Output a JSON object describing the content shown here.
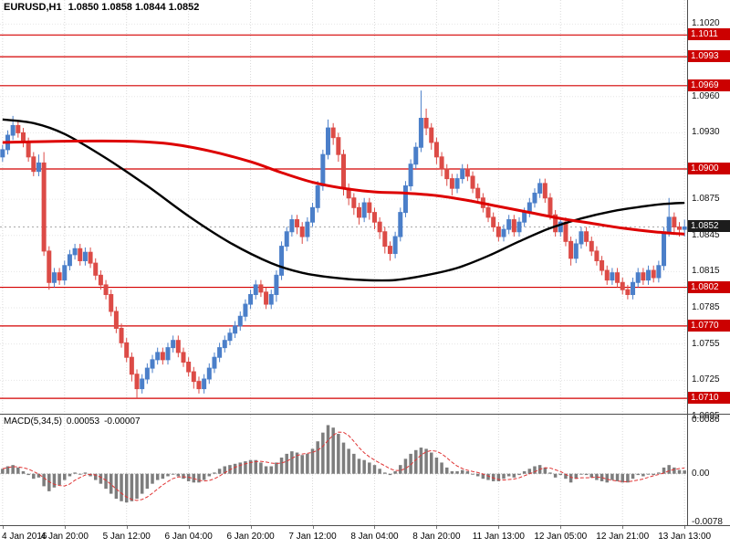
{
  "title": {
    "symbol_period": "EURUSD,H1",
    "ohlc": "1.0850 1.0858 1.0844 1.0852"
  },
  "colors": {
    "up": "#4b7fc9",
    "down": "#dc4b46",
    "ma_red": "#dd0000",
    "ma_black": "#000000",
    "level": "#d40000",
    "badge_level_bg": "#cc0000",
    "badge_current_bg": "#1c1c1c",
    "macd_bar": "#7d7d7d",
    "macd_signal": "#e03535",
    "grid": "#d9d9d9",
    "grid_h": "#e6e6e6",
    "current_line": "#aaaaaa"
  },
  "chart_data": [
    {
      "type": "candlestick",
      "symbol": "EURUSD",
      "timeframe": "H1",
      "legend_position": "top-left",
      "grid": true,
      "ylim": [
        1.0698,
        1.104
      ],
      "y_ticks": [
        1.102,
        1.096,
        1.093,
        1.0875,
        1.0845,
        1.0815,
        1.0785,
        1.0755,
        1.0725,
        1.0695
      ],
      "levels": [
        1.1011,
        1.0993,
        1.0969,
        1.09,
        1.0802,
        1.077,
        1.071
      ],
      "current_price": 1.0852,
      "x_labels": [
        "4 Jan 2016",
        "4 Jan 20:00",
        "5 Jan 12:00",
        "6 Jan 04:00",
        "6 Jan 20:00",
        "7 Jan 12:00",
        "8 Jan 04:00",
        "8 Jan 20:00",
        "11 Jan 13:00",
        "12 Jan 05:00",
        "12 Jan 21:00",
        "13 Jan 13:00"
      ],
      "candles": [
        [
          1.091,
          1.092,
          1.0906,
          1.0916
        ],
        [
          1.0916,
          1.0932,
          1.0912,
          1.0928
        ],
        [
          1.0928,
          1.0944,
          1.0924,
          1.0936
        ],
        [
          1.0936,
          1.094,
          1.0926,
          1.093
        ],
        [
          1.093,
          1.0934,
          1.0918,
          1.0922
        ],
        [
          1.0922,
          1.0926,
          1.0906,
          1.091
        ],
        [
          1.091,
          1.0914,
          1.0894,
          1.0898
        ],
        [
          1.0898,
          1.0912,
          1.0894,
          1.0905
        ],
        [
          1.0905,
          1.0914,
          1.0828,
          1.0832
        ],
        [
          1.0832,
          1.0836,
          1.08,
          1.0806
        ],
        [
          1.0806,
          1.0818,
          1.0802,
          1.0814
        ],
        [
          1.0814,
          1.0818,
          1.0804,
          1.0808
        ],
        [
          1.0808,
          1.0824,
          1.0804,
          1.082
        ],
        [
          1.082,
          1.0833,
          1.0816,
          1.0829
        ],
        [
          1.0829,
          1.0838,
          1.0825,
          1.0834
        ],
        [
          1.0834,
          1.0838,
          1.082,
          1.0824
        ],
        [
          1.0824,
          1.0835,
          1.082,
          1.0831
        ],
        [
          1.0831,
          1.0835,
          1.0818,
          1.0822
        ],
        [
          1.0822,
          1.0826,
          1.0808,
          1.0812
        ],
        [
          1.0812,
          1.0816,
          1.08,
          1.0804
        ],
        [
          1.0804,
          1.0808,
          1.0792,
          1.0796
        ],
        [
          1.0796,
          1.08,
          1.0778,
          1.0782
        ],
        [
          1.0782,
          1.0786,
          1.0764,
          1.0768
        ],
        [
          1.0768,
          1.0772,
          1.0752,
          1.0756
        ],
        [
          1.0756,
          1.076,
          1.074,
          1.0744
        ],
        [
          1.0744,
          1.0748,
          1.0724,
          1.073
        ],
        [
          1.073,
          1.0734,
          1.071,
          1.0718
        ],
        [
          1.0718,
          1.073,
          1.0714,
          1.0726
        ],
        [
          1.0726,
          1.0739,
          1.0722,
          1.0735
        ],
        [
          1.0735,
          1.0746,
          1.0731,
          1.0742
        ],
        [
          1.0742,
          1.0752,
          1.0738,
          1.0748
        ],
        [
          1.0748,
          1.0752,
          1.0738,
          1.0742
        ],
        [
          1.0742,
          1.0756,
          1.0738,
          1.0752
        ],
        [
          1.0752,
          1.0762,
          1.0748,
          1.0758
        ],
        [
          1.0758,
          1.0762,
          1.0744,
          1.0748
        ],
        [
          1.0748,
          1.0752,
          1.0736,
          1.074
        ],
        [
          1.074,
          1.0744,
          1.0728,
          1.0732
        ],
        [
          1.0732,
          1.0736,
          1.0718,
          1.0724
        ],
        [
          1.0724,
          1.0728,
          1.0714,
          1.0718
        ],
        [
          1.0718,
          1.073,
          1.0714,
          1.0726
        ],
        [
          1.0726,
          1.0739,
          1.0722,
          1.0735
        ],
        [
          1.0735,
          1.0748,
          1.0731,
          1.0744
        ],
        [
          1.0744,
          1.0756,
          1.074,
          1.0752
        ],
        [
          1.0752,
          1.0762,
          1.0748,
          1.0758
        ],
        [
          1.0758,
          1.0768,
          1.0754,
          1.0764
        ],
        [
          1.0764,
          1.0774,
          1.076,
          1.077
        ],
        [
          1.077,
          1.0782,
          1.0766,
          1.0778
        ],
        [
          1.0778,
          1.0792,
          1.0774,
          1.0788
        ],
        [
          1.0788,
          1.08,
          1.0784,
          1.0796
        ],
        [
          1.0796,
          1.0808,
          1.0792,
          1.0804
        ],
        [
          1.0804,
          1.0808,
          1.0794,
          1.0798
        ],
        [
          1.0798,
          1.0802,
          1.0784,
          1.0788
        ],
        [
          1.0788,
          1.08,
          1.0784,
          1.0796
        ],
        [
          1.0796,
          1.0816,
          1.079,
          1.0812
        ],
        [
          1.0812,
          1.084,
          1.0808,
          1.0836
        ],
        [
          1.0836,
          1.0852,
          1.0832,
          1.0848
        ],
        [
          1.0848,
          1.0862,
          1.0844,
          1.0858
        ],
        [
          1.0858,
          1.0862,
          1.0846,
          1.0852
        ],
        [
          1.0852,
          1.0856,
          1.0838,
          1.0844
        ],
        [
          1.0844,
          1.086,
          1.084,
          1.0856
        ],
        [
          1.0856,
          1.0872,
          1.0852,
          1.0868
        ],
        [
          1.0868,
          1.089,
          1.0864,
          1.0886
        ],
        [
          1.0886,
          1.0916,
          1.0882,
          1.0912
        ],
        [
          1.0912,
          1.0941,
          1.0908,
          1.0934
        ],
        [
          1.0934,
          1.0938,
          1.092,
          1.0926
        ],
        [
          1.0926,
          1.093,
          1.0906,
          1.0912
        ],
        [
          1.0912,
          1.0916,
          1.0878,
          1.0884
        ],
        [
          1.0884,
          1.0888,
          1.087,
          1.0876
        ],
        [
          1.0876,
          1.088,
          1.0862,
          1.0868
        ],
        [
          1.0868,
          1.0872,
          1.0854,
          1.086
        ],
        [
          1.086,
          1.0876,
          1.0856,
          1.0872
        ],
        [
          1.0872,
          1.0876,
          1.0858,
          1.0864
        ],
        [
          1.0864,
          1.0868,
          1.085,
          1.0856
        ],
        [
          1.0856,
          1.086,
          1.0842,
          1.0848
        ],
        [
          1.0848,
          1.0852,
          1.083,
          1.0836
        ],
        [
          1.0836,
          1.084,
          1.0824,
          1.083
        ],
        [
          1.083,
          1.0848,
          1.0826,
          1.0844
        ],
        [
          1.0844,
          1.0868,
          1.084,
          1.0864
        ],
        [
          1.0864,
          1.089,
          1.086,
          1.0886
        ],
        [
          1.0886,
          1.0908,
          1.0882,
          1.0904
        ],
        [
          1.0904,
          1.0922,
          1.09,
          1.0918
        ],
        [
          1.0918,
          1.0965,
          1.0914,
          1.0942
        ],
        [
          1.0942,
          1.095,
          1.0928,
          1.0934
        ],
        [
          1.0934,
          1.0938,
          1.0916,
          1.0922
        ],
        [
          1.0922,
          1.0926,
          1.0904,
          1.091
        ],
        [
          1.091,
          1.0914,
          1.0894,
          1.09
        ],
        [
          1.09,
          1.0904,
          1.0886,
          1.0892
        ],
        [
          1.0892,
          1.0896,
          1.0878,
          1.0884
        ],
        [
          1.0884,
          1.0896,
          1.088,
          1.0892
        ],
        [
          1.0892,
          1.0904,
          1.0888,
          1.09
        ],
        [
          1.09,
          1.0904,
          1.089,
          1.0894
        ],
        [
          1.0894,
          1.0898,
          1.088,
          1.0884
        ],
        [
          1.0884,
          1.0888,
          1.0872,
          1.0876
        ],
        [
          1.0876,
          1.088,
          1.0864,
          1.0868
        ],
        [
          1.0868,
          1.0872,
          1.0856,
          1.086
        ],
        [
          1.086,
          1.0864,
          1.0848,
          1.0852
        ],
        [
          1.0852,
          1.0856,
          1.084,
          1.0844
        ],
        [
          1.0844,
          1.0854,
          1.084,
          1.085
        ],
        [
          1.085,
          1.0862,
          1.0846,
          1.0858
        ],
        [
          1.0858,
          1.0862,
          1.0844,
          1.0848
        ],
        [
          1.0848,
          1.086,
          1.0844,
          1.0856
        ],
        [
          1.0856,
          1.0868,
          1.0852,
          1.0864
        ],
        [
          1.0864,
          1.0876,
          1.086,
          1.0872
        ],
        [
          1.0872,
          1.0884,
          1.0868,
          1.088
        ],
        [
          1.088,
          1.0892,
          1.0876,
          1.0888
        ],
        [
          1.0888,
          1.0892,
          1.0872,
          1.0876
        ],
        [
          1.0876,
          1.088,
          1.0858,
          1.0862
        ],
        [
          1.0862,
          1.0866,
          1.0844,
          1.0848
        ],
        [
          1.0848,
          1.086,
          1.0844,
          1.0856
        ],
        [
          1.0856,
          1.086,
          1.0836,
          1.084
        ],
        [
          1.084,
          1.0844,
          1.082,
          1.0826
        ],
        [
          1.0826,
          1.0842,
          1.0822,
          1.0838
        ],
        [
          1.0838,
          1.0852,
          1.0834,
          1.0848
        ],
        [
          1.0848,
          1.0852,
          1.0836,
          1.084
        ],
        [
          1.084,
          1.0844,
          1.0828,
          1.0832
        ],
        [
          1.0832,
          1.0836,
          1.082,
          1.0824
        ],
        [
          1.0824,
          1.0828,
          1.0812,
          1.0816
        ],
        [
          1.0816,
          1.082,
          1.0804,
          1.0808
        ],
        [
          1.0808,
          1.0818,
          1.0804,
          1.0814
        ],
        [
          1.0814,
          1.0818,
          1.0802,
          1.0806
        ],
        [
          1.0806,
          1.081,
          1.0796,
          1.08
        ],
        [
          1.08,
          1.0804,
          1.0792,
          1.0796
        ],
        [
          1.0796,
          1.081,
          1.0792,
          1.0806
        ],
        [
          1.0806,
          1.0818,
          1.0802,
          1.0814
        ],
        [
          1.0814,
          1.0818,
          1.0804,
          1.0808
        ],
        [
          1.0808,
          1.082,
          1.0804,
          1.0816
        ],
        [
          1.0816,
          1.082,
          1.0806,
          1.081
        ],
        [
          1.081,
          1.0824,
          1.0806,
          1.082
        ],
        [
          1.082,
          1.0852,
          1.0816,
          1.0848
        ],
        [
          1.0848,
          1.0876,
          1.0844,
          1.086
        ],
        [
          1.086,
          1.0864,
          1.0846,
          1.0852
        ],
        [
          1.0852,
          1.0856,
          1.0844,
          1.085
        ],
        [
          1.085,
          1.0858,
          1.0844,
          1.0852
        ]
      ],
      "ma_red": [
        [
          0,
          1.0922
        ],
        [
          12,
          1.0923
        ],
        [
          24,
          1.0923
        ],
        [
          32,
          1.0921
        ],
        [
          40,
          1.0915
        ],
        [
          48,
          1.0906
        ],
        [
          54,
          1.0897
        ],
        [
          60,
          1.0889
        ],
        [
          66,
          1.0884
        ],
        [
          72,
          1.0881
        ],
        [
          78,
          1.088
        ],
        [
          84,
          1.0878
        ],
        [
          90,
          1.0874
        ],
        [
          96,
          1.0869
        ],
        [
          102,
          1.0864
        ],
        [
          108,
          1.0859
        ],
        [
          114,
          1.0855
        ],
        [
          120,
          1.0851
        ],
        [
          126,
          1.0848
        ],
        [
          132,
          1.0846
        ]
      ],
      "ma_black": [
        [
          0,
          1.0941
        ],
        [
          6,
          1.0938
        ],
        [
          12,
          1.0929
        ],
        [
          20,
          1.0909
        ],
        [
          28,
          1.0886
        ],
        [
          36,
          1.0861
        ],
        [
          44,
          1.0839
        ],
        [
          52,
          1.0822
        ],
        [
          58,
          1.0814
        ],
        [
          64,
          1.081
        ],
        [
          70,
          1.0808
        ],
        [
          76,
          1.0808
        ],
        [
          82,
          1.0812
        ],
        [
          88,
          1.0818
        ],
        [
          94,
          1.0828
        ],
        [
          100,
          1.084
        ],
        [
          106,
          1.0851
        ],
        [
          112,
          1.0859
        ],
        [
          118,
          1.0865
        ],
        [
          124,
          1.0869
        ],
        [
          128,
          1.0871
        ],
        [
          132,
          1.0872
        ]
      ]
    },
    {
      "type": "bar",
      "label": "MACD(5,34,5)",
      "value": "0.00053",
      "signal_value": "-0.00007",
      "ylim": [
        -0.0078,
        0.0086
      ],
      "y_ticks": [
        {
          "v": 0.0086,
          "label": "0.0086"
        },
        {
          "v": 0,
          "label": "0.00"
        },
        {
          "v": -0.0078,
          "label": "-0.0078"
        }
      ],
      "values": [
        0.0008,
        0.0012,
        0.0014,
        0.001,
        0.0004,
        -0.0002,
        -0.0008,
        -0.0006,
        -0.002,
        -0.0028,
        -0.0022,
        -0.0018,
        -0.001,
        -0.0004,
        0.0002,
        0.0,
        0.0002,
        -0.0004,
        -0.001,
        -0.0016,
        -0.0024,
        -0.0032,
        -0.004,
        -0.0044,
        -0.0046,
        -0.0044,
        -0.004,
        -0.0032,
        -0.0024,
        -0.0016,
        -0.001,
        -0.0008,
        -0.0004,
        0.0,
        -0.0004,
        -0.0008,
        -0.0012,
        -0.0014,
        -0.0014,
        -0.001,
        -0.0004,
        0.0002,
        0.0008,
        0.0012,
        0.0014,
        0.0016,
        0.0018,
        0.002,
        0.0022,
        0.0022,
        0.0018,
        0.0012,
        0.0012,
        0.0018,
        0.0026,
        0.0032,
        0.0036,
        0.0034,
        0.003,
        0.0032,
        0.004,
        0.0052,
        0.0066,
        0.0078,
        0.0074,
        0.0064,
        0.005,
        0.004,
        0.0032,
        0.0024,
        0.0022,
        0.0018,
        0.0014,
        0.0008,
        0.0002,
        -0.0002,
        0.0004,
        0.0014,
        0.0024,
        0.0032,
        0.0038,
        0.0042,
        0.004,
        0.0034,
        0.0026,
        0.0018,
        0.001,
        0.0004,
        0.0004,
        0.0006,
        0.0004,
        0.0,
        -0.0004,
        -0.0008,
        -0.001,
        -0.0012,
        -0.0012,
        -0.0008,
        -0.0004,
        -0.0006,
        -0.0002,
        0.0004,
        0.0008,
        0.0012,
        0.0014,
        0.001,
        0.0002,
        -0.0006,
        -0.0002,
        -0.0008,
        -0.0014,
        -0.0008,
        0.0,
        -0.0002,
        -0.0006,
        -0.001,
        -0.0012,
        -0.0014,
        -0.001,
        -0.0012,
        -0.0014,
        -0.0014,
        -0.0008,
        -0.0002,
        -0.0004,
        0.0,
        -0.0002,
        0.0002,
        0.001,
        0.0014,
        0.001,
        0.0006,
        0.00053
      ]
    }
  ]
}
